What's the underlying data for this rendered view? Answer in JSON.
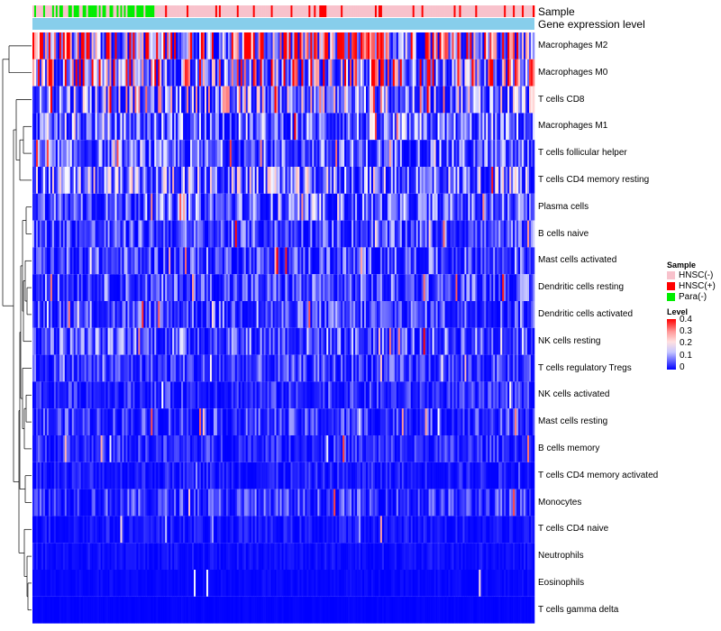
{
  "chart_data": {
    "type": "heatmap",
    "column_annotations": [
      {
        "name": "Sample",
        "kind": "categorical"
      },
      {
        "name": "Gene expression level",
        "kind": "bar"
      }
    ],
    "rows": [
      {
        "label": "Macrophages M2",
        "mean": 0.2
      },
      {
        "label": "Macrophages M0",
        "mean": 0.15
      },
      {
        "label": "T cells CD8",
        "mean": 0.1
      },
      {
        "label": "Macrophages M1",
        "mean": 0.07
      },
      {
        "label": "T cells follicular helper",
        "mean": 0.06
      },
      {
        "label": "T cells CD4 memory resting",
        "mean": 0.08
      },
      {
        "label": "Plasma cells",
        "mean": 0.06
      },
      {
        "label": "B cells naive",
        "mean": 0.05
      },
      {
        "label": "Mast cells activated",
        "mean": 0.05
      },
      {
        "label": "Dendritic cells resting",
        "mean": 0.05
      },
      {
        "label": "Dendritic cells activated",
        "mean": 0.05
      },
      {
        "label": "NK cells resting",
        "mean": 0.06
      },
      {
        "label": "T cells regulatory  Tregs",
        "mean": 0.04
      },
      {
        "label": "NK cells activated",
        "mean": 0.03
      },
      {
        "label": "Mast cells resting",
        "mean": 0.04
      },
      {
        "label": "B cells memory",
        "mean": 0.03
      },
      {
        "label": "T cells CD4 memory activated",
        "mean": 0.02
      },
      {
        "label": "Monocytes",
        "mean": 0.04
      },
      {
        "label": "T cells CD4 naive",
        "mean": 0.015
      },
      {
        "label": "Neutrophils",
        "mean": 0.01
      },
      {
        "label": "Eosinophils",
        "mean": 0.005
      },
      {
        "label": "T cells gamma delta",
        "mean": 0.002
      }
    ],
    "legend": {
      "sample": {
        "title": "Sample",
        "entries": [
          {
            "label": "HNSC(-)",
            "color": "#f8c2cc"
          },
          {
            "label": "HNSC(+)",
            "color": "#ff0000"
          },
          {
            "label": "Para(-)",
            "color": "#00ee00"
          }
        ]
      },
      "level": {
        "title": "Level",
        "ticks": [
          "0.4",
          "0.3",
          "0.2",
          "0.1",
          "0"
        ],
        "range": [
          0,
          0.4
        ],
        "colors": [
          "#0000ff",
          "#ffffff",
          "#ff0000"
        ]
      }
    }
  }
}
